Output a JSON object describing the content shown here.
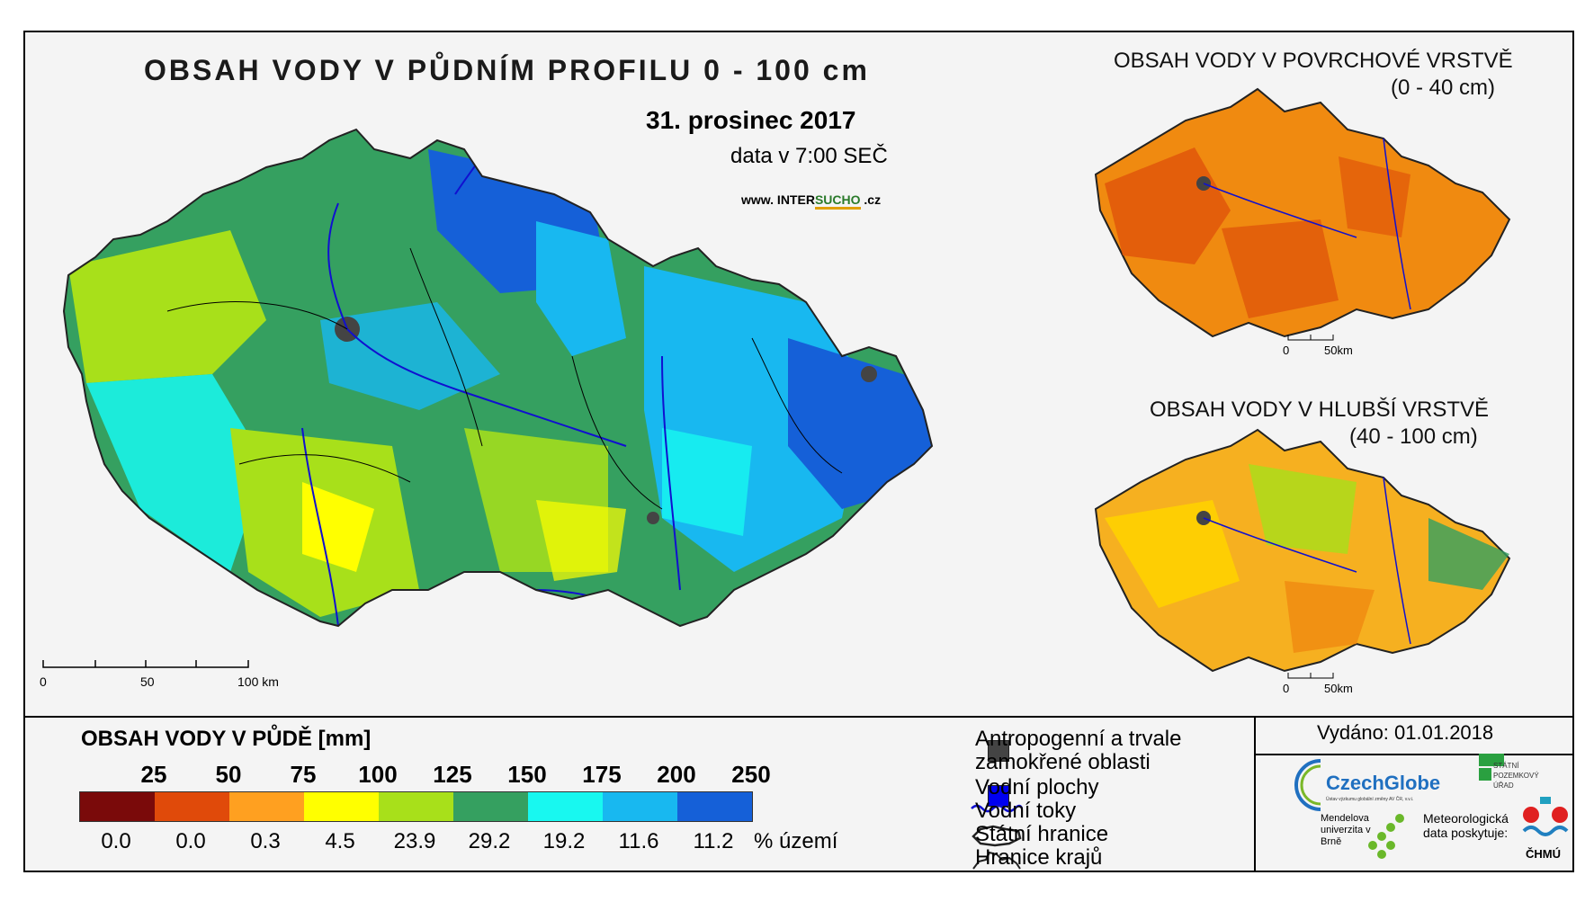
{
  "main": {
    "title": "OBSAH VODY V PŮDNÍM PROFILU 0 - 100 cm",
    "date": "31. prosinec 2017",
    "time": "data v 7:00 SEČ",
    "web_prefix": "www. INTER",
    "web_accent": "SUCHO",
    "web_suffix": " .cz",
    "scale": [
      "0",
      "50",
      "100 km"
    ]
  },
  "inset_top": {
    "title": "OBSAH VODY V POVRCHOVÉ VRSTVĚ",
    "range": "(0 - 40 cm)",
    "scale": [
      "0",
      "50km"
    ]
  },
  "inset_bottom": {
    "title": "OBSAH VODY V HLUBŠÍ VRSTVĚ",
    "range": "(40 - 100 cm)",
    "scale": [
      "0",
      "50km"
    ]
  },
  "legend": {
    "title": "OBSAH VODY V PŮDĚ [mm]",
    "thresholds": [
      "25",
      "50",
      "75",
      "100",
      "125",
      "150",
      "175",
      "200",
      "250"
    ],
    "colors": [
      "#7a0a0a",
      "#e04a0a",
      "#ffa020",
      "#ffff00",
      "#a8e01a",
      "#35a060",
      "#18f8f0",
      "#18b8f0",
      "#1560d8"
    ],
    "percentages": [
      "0.0",
      "0.0",
      "0.3",
      "4.5",
      "23.9",
      "29.2",
      "19.2",
      "11.6",
      "11.2"
    ],
    "pct_unit": "% území"
  },
  "symbols": {
    "anthropogenic_line1": "Antropogenní a trvale",
    "anthropogenic_line2": "zamokřené oblasti",
    "water_bodies": "Vodní plochy",
    "streams": "Vodní toky",
    "state_border": "Státní hranice",
    "region_border": "Hranice krajů"
  },
  "issued": "Vydáno: 01.01.2018",
  "logos": {
    "czechglobe": "CzechGlobe",
    "czechglobe_sub": "Ústav výzkumu globální změny AV ČR, v.v.i.",
    "spu": "STÁTNÍ POZEMKOVÝ ÚŘAD",
    "mendelu": "Mendelova univerzita v Brně",
    "meteo": "Meteorologická data poskytuje:",
    "chmu": "ČHMÚ"
  }
}
